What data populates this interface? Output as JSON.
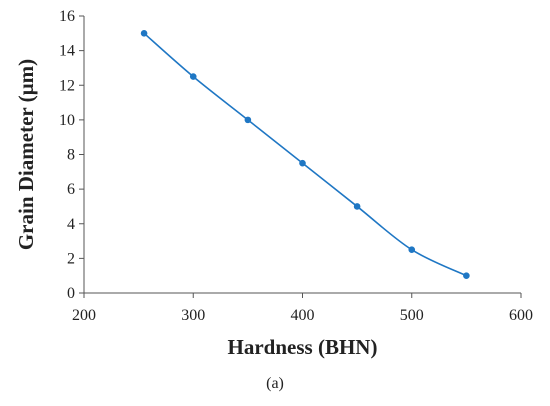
{
  "chart_data": {
    "type": "line",
    "xlabel": "Hardness (BHN)",
    "ylabel": "Grain Diameter (µm)",
    "xlim": [
      200,
      600
    ],
    "ylim": [
      0,
      16
    ],
    "x_ticks": [
      "200",
      "300",
      "400",
      "500",
      "600"
    ],
    "y_ticks": [
      "0",
      "2",
      "4",
      "6",
      "8",
      "10",
      "12",
      "14",
      "16"
    ],
    "grid": false,
    "legend": "none",
    "series": [
      {
        "x": [
          255,
          300,
          350,
          400,
          450,
          500,
          550
        ],
        "y": [
          15,
          12.5,
          10,
          7.5,
          5,
          2.5,
          1
        ],
        "color": "#1f77c4"
      }
    ]
  },
  "caption": "(a)"
}
